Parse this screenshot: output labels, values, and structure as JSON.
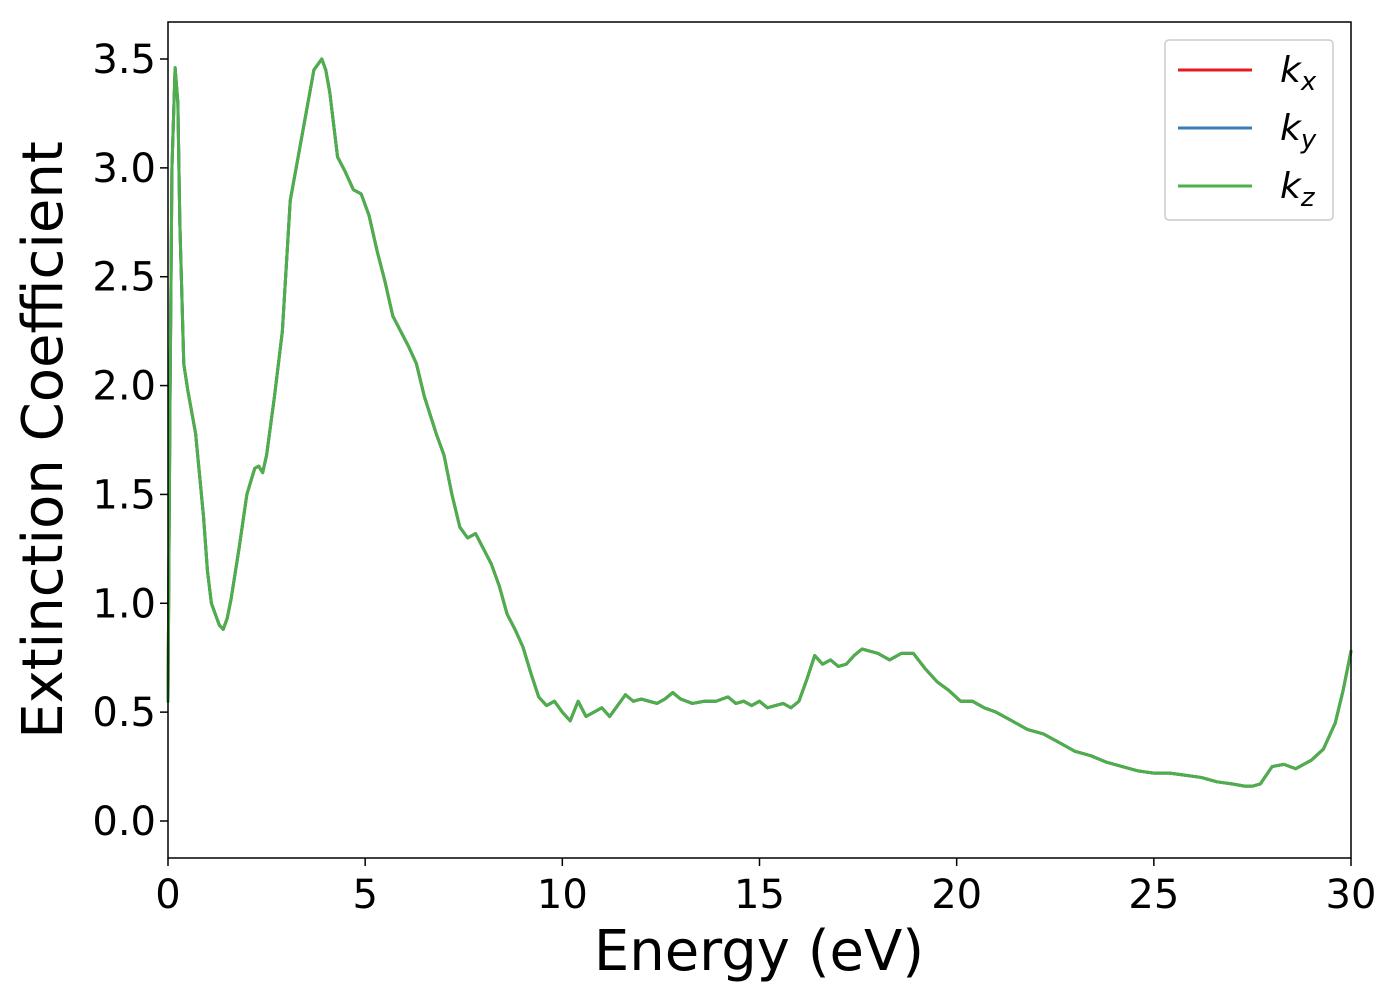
{
  "chart_data": {
    "type": "line",
    "title": "",
    "xlabel": "Energy (eV)",
    "ylabel": "Extinction Coefficient",
    "xlim": [
      0,
      30
    ],
    "ylim": [
      -0.17,
      3.67
    ],
    "grid": false,
    "legend_position": "top-right",
    "xticks": [
      0,
      5,
      10,
      15,
      20,
      25,
      30
    ],
    "xtick_labels": [
      "0",
      "5",
      "10",
      "15",
      "20",
      "25",
      "30"
    ],
    "yticks": [
      0.0,
      0.5,
      1.0,
      1.5,
      2.0,
      2.5,
      3.0,
      3.5
    ],
    "ytick_labels": [
      "0.0",
      "0.5",
      "1.0",
      "1.5",
      "2.0",
      "2.5",
      "3.0",
      "3.5"
    ],
    "series": [
      {
        "name": "k",
        "subscript": "x",
        "color": "#e41a1c"
      },
      {
        "name": "k",
        "subscript": "y",
        "color": "#377eb8"
      },
      {
        "name": "k",
        "subscript": "z",
        "color": "#4daf4a"
      }
    ],
    "x": [
      0.0,
      0.05,
      0.1,
      0.18,
      0.25,
      0.3,
      0.4,
      0.5,
      0.7,
      0.9,
      1.0,
      1.1,
      1.2,
      1.3,
      1.4,
      1.5,
      1.6,
      1.8,
      2.0,
      2.2,
      2.3,
      2.4,
      2.5,
      2.7,
      2.9,
      3.1,
      3.3,
      3.5,
      3.7,
      3.9,
      4.0,
      4.1,
      4.2,
      4.3,
      4.5,
      4.7,
      4.9,
      5.1,
      5.3,
      5.5,
      5.7,
      5.9,
      6.1,
      6.3,
      6.5,
      6.8,
      7.0,
      7.2,
      7.4,
      7.6,
      7.8,
      8.0,
      8.2,
      8.4,
      8.6,
      8.8,
      9.0,
      9.2,
      9.4,
      9.6,
      9.8,
      10.0,
      10.2,
      10.4,
      10.6,
      10.8,
      11.0,
      11.2,
      11.4,
      11.6,
      11.8,
      12.0,
      12.2,
      12.4,
      12.6,
      12.8,
      13.0,
      13.3,
      13.6,
      13.9,
      14.2,
      14.4,
      14.6,
      14.8,
      15.0,
      15.2,
      15.4,
      15.6,
      15.8,
      16.0,
      16.2,
      16.4,
      16.6,
      16.8,
      17.0,
      17.2,
      17.4,
      17.6,
      17.8,
      18.0,
      18.3,
      18.6,
      18.9,
      19.2,
      19.5,
      19.8,
      20.1,
      20.4,
      20.7,
      21.0,
      21.4,
      21.8,
      22.2,
      22.6,
      23.0,
      23.4,
      23.8,
      24.2,
      24.6,
      25.0,
      25.4,
      25.8,
      26.2,
      26.6,
      27.0,
      27.3,
      27.5,
      27.7,
      28.0,
      28.3,
      28.6,
      29.0,
      29.3,
      29.6,
      29.8,
      30.0
    ],
    "values": [
      0.55,
      1.9,
      3.0,
      3.46,
      3.3,
      2.75,
      2.1,
      1.98,
      1.78,
      1.4,
      1.15,
      1.0,
      0.95,
      0.9,
      0.88,
      0.93,
      1.02,
      1.25,
      1.5,
      1.62,
      1.63,
      1.6,
      1.68,
      1.95,
      2.25,
      2.85,
      3.05,
      3.25,
      3.45,
      3.5,
      3.45,
      3.35,
      3.2,
      3.05,
      2.98,
      2.9,
      2.88,
      2.78,
      2.62,
      2.48,
      2.32,
      2.25,
      2.18,
      2.1,
      1.95,
      1.78,
      1.68,
      1.5,
      1.35,
      1.3,
      1.32,
      1.25,
      1.18,
      1.08,
      0.95,
      0.88,
      0.8,
      0.68,
      0.57,
      0.53,
      0.55,
      0.5,
      0.46,
      0.55,
      0.48,
      0.5,
      0.52,
      0.48,
      0.53,
      0.58,
      0.55,
      0.56,
      0.55,
      0.54,
      0.56,
      0.59,
      0.56,
      0.54,
      0.55,
      0.55,
      0.57,
      0.54,
      0.55,
      0.53,
      0.55,
      0.52,
      0.53,
      0.54,
      0.52,
      0.55,
      0.65,
      0.76,
      0.72,
      0.74,
      0.71,
      0.72,
      0.76,
      0.79,
      0.78,
      0.77,
      0.74,
      0.77,
      0.77,
      0.7,
      0.64,
      0.6,
      0.55,
      0.55,
      0.52,
      0.5,
      0.46,
      0.42,
      0.4,
      0.36,
      0.32,
      0.3,
      0.27,
      0.25,
      0.23,
      0.22,
      0.22,
      0.21,
      0.2,
      0.18,
      0.17,
      0.16,
      0.16,
      0.17,
      0.25,
      0.26,
      0.24,
      0.28,
      0.33,
      0.45,
      0.6,
      0.78
    ]
  }
}
